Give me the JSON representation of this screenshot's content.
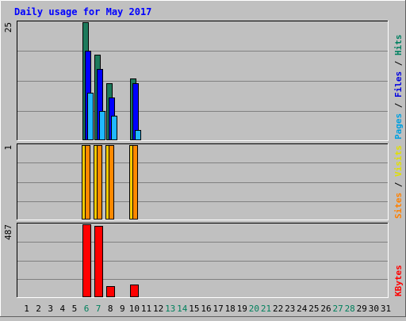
{
  "chart_data": {
    "type": "bar",
    "title": "Daily usage for May 2017",
    "x": [
      "1",
      "2",
      "3",
      "4",
      "5",
      "6",
      "7",
      "8",
      "9",
      "10",
      "11",
      "12",
      "13",
      "14",
      "15",
      "16",
      "17",
      "18",
      "19",
      "20",
      "21",
      "22",
      "23",
      "24",
      "25",
      "26",
      "27",
      "28",
      "29",
      "30",
      "31"
    ],
    "weekend_days": [
      "6",
      "7",
      "13",
      "14",
      "20",
      "21",
      "27",
      "28"
    ],
    "panels": [
      {
        "id": "hits",
        "max_label": "25",
        "ymax": 25,
        "legend": [
          {
            "text": "Pages",
            "color": "#00a0e0"
          },
          {
            "text": " / ",
            "color": "#000000"
          },
          {
            "text": "Files",
            "color": "#0000e0"
          },
          {
            "text": " / ",
            "color": "#000000"
          },
          {
            "text": "Hits",
            "color": "#008060"
          }
        ],
        "series": [
          {
            "name": "Hits",
            "color": "#1d7a5c",
            "values": [
              0,
              0,
              0,
              0,
              0,
              25,
              18,
              12,
              0,
              13,
              0,
              0,
              0,
              0,
              0,
              0,
              0,
              0,
              0,
              0,
              0,
              0,
              0,
              0,
              0,
              0,
              0,
              0,
              0,
              0,
              0
            ]
          },
          {
            "name": "Files",
            "color": "#0000ff",
            "values": [
              0,
              0,
              0,
              0,
              0,
              19,
              15,
              9,
              0,
              12,
              0,
              0,
              0,
              0,
              0,
              0,
              0,
              0,
              0,
              0,
              0,
              0,
              0,
              0,
              0,
              0,
              0,
              0,
              0,
              0,
              0
            ]
          },
          {
            "name": "Pages",
            "color": "#20b8ff",
            "values": [
              0,
              0,
              0,
              0,
              0,
              10,
              6,
              5,
              0,
              2,
              0,
              0,
              0,
              0,
              0,
              0,
              0,
              0,
              0,
              0,
              0,
              0,
              0,
              0,
              0,
              0,
              0,
              0,
              0,
              0,
              0
            ]
          }
        ]
      },
      {
        "id": "visits",
        "max_label": "1",
        "ymax": 1,
        "legend": [
          {
            "text": "Sites",
            "color": "#ff8000"
          },
          {
            "text": " / ",
            "color": "#000000"
          },
          {
            "text": "Visits",
            "color": "#e0e000"
          }
        ],
        "series": [
          {
            "name": "Visits",
            "color": "#ffcc00",
            "values": [
              0,
              0,
              0,
              0,
              0,
              1,
              1,
              1,
              0,
              1,
              0,
              0,
              0,
              0,
              0,
              0,
              0,
              0,
              0,
              0,
              0,
              0,
              0,
              0,
              0,
              0,
              0,
              0,
              0,
              0,
              0
            ]
          },
          {
            "name": "Sites",
            "color": "#ff8800",
            "values": [
              0,
              0,
              0,
              0,
              0,
              1,
              1,
              1,
              0,
              1,
              0,
              0,
              0,
              0,
              0,
              0,
              0,
              0,
              0,
              0,
              0,
              0,
              0,
              0,
              0,
              0,
              0,
              0,
              0,
              0,
              0
            ]
          }
        ]
      },
      {
        "id": "kbytes",
        "max_label": "487",
        "ymax": 487,
        "legend": [
          {
            "text": "KBytes",
            "color": "#ff0000"
          }
        ],
        "series": [
          {
            "name": "KBytes",
            "color": "#ff0000",
            "values": [
              0,
              0,
              0,
              0,
              0,
              487,
              478,
              70,
              0,
              80,
              0,
              0,
              0,
              0,
              0,
              0,
              0,
              0,
              0,
              0,
              0,
              0,
              0,
              0,
              0,
              0,
              0,
              0,
              0,
              0,
              0
            ]
          }
        ]
      }
    ],
    "colors": {
      "background": "#c0c0c0",
      "title": "#0000ff",
      "gridline": "#808080",
      "weekday_label": "#000000",
      "weekend_label": "#00805c"
    }
  }
}
